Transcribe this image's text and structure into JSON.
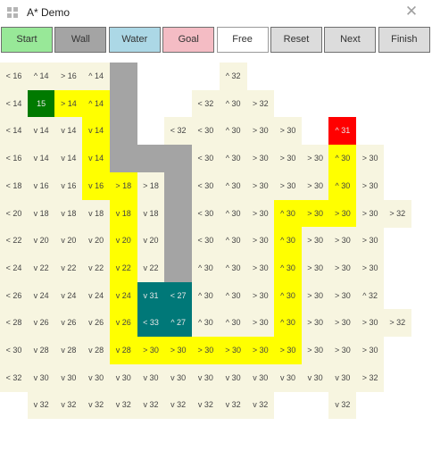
{
  "window": {
    "title": "A* Demo",
    "close_icon": "close-icon"
  },
  "toolbar": {
    "buttons": [
      {
        "label": "Start",
        "color": "#98e898"
      },
      {
        "label": "Wall",
        "color": "#a4a4a4"
      },
      {
        "label": "Water",
        "color": "#acd8e6"
      },
      {
        "label": "Goal",
        "color": "#f4bcc4"
      },
      {
        "label": "Free",
        "color": "#ffffff"
      },
      {
        "label": "Reset",
        "color": "#dcdcdc"
      },
      {
        "label": "Next",
        "color": "#dcdcdc"
      },
      {
        "label": "Finish",
        "color": "#dcdcdc"
      }
    ]
  },
  "legend_colors": {
    "visited": "#f7f5e0",
    "path": "#ffff00",
    "start": "#007a00",
    "goal": "#ff0000",
    "wall": "#a4a4a4",
    "water": "#007878"
  },
  "grid": {
    "rows": [
      [
        "< 16",
        "^ 14",
        "> 16",
        "^ 14",
        "#",
        "",
        "",
        "",
        "^ 32",
        "",
        "",
        "",
        "",
        "",
        "",
        ""
      ],
      [
        "< 14",
        "S:15",
        "P:> 14",
        "P:^ 14",
        "#",
        "",
        "",
        "< 32",
        "^ 30",
        "> 32",
        "",
        "",
        "",
        "",
        "",
        ""
      ],
      [
        "< 14",
        "v 14",
        "v 14",
        "P:v 14",
        "#",
        "",
        "< 32",
        "< 30",
        "^ 30",
        "> 30",
        "> 30",
        "",
        "G:^ 31",
        "",
        "",
        ""
      ],
      [
        "< 16",
        "v 14",
        "v 14",
        "P:v 14",
        "#",
        "#",
        "#",
        "< 30",
        "^ 30",
        "> 30",
        "> 30",
        "> 30",
        "P:^ 30",
        "> 30",
        "",
        ""
      ],
      [
        "< 18",
        "v 16",
        "v 16",
        "P:v 16",
        "P:> 18",
        "> 18",
        "#",
        "< 30",
        "^ 30",
        "> 30",
        "> 30",
        "> 30",
        "P:^ 30",
        "> 30",
        "",
        ""
      ],
      [
        "< 20",
        "v 18",
        "v 18",
        "v 18",
        "P:v 18",
        "v 18",
        "#",
        "< 30",
        "^ 30",
        "> 30",
        "P:^ 30",
        "P:> 30",
        "P:> 30",
        "> 30",
        "> 32",
        ""
      ],
      [
        "< 22",
        "v 20",
        "v 20",
        "v 20",
        "P:v 20",
        "v 20",
        "#",
        "< 30",
        "^ 30",
        "> 30",
        "P:^ 30",
        "> 30",
        "> 30",
        "> 30",
        "",
        ""
      ],
      [
        "< 24",
        "v 22",
        "v 22",
        "v 22",
        "P:v 22",
        "v 22",
        "#",
        "^ 30",
        "^ 30",
        "> 30",
        "P:^ 30",
        "> 30",
        "> 30",
        "> 30",
        "",
        ""
      ],
      [
        "< 26",
        "v 24",
        "v 24",
        "v 24",
        "P:v 24",
        "W:v 31",
        "W:< 27",
        "^ 30",
        "^ 30",
        "> 30",
        "P:^ 30",
        "> 30",
        "> 30",
        "^ 32",
        "",
        ""
      ],
      [
        "< 28",
        "v 26",
        "v 26",
        "v 26",
        "P:v 26",
        "W:< 33",
        "W:^ 27",
        "^ 30",
        "^ 30",
        "> 30",
        "P:^ 30",
        "> 30",
        "> 30",
        "> 30",
        "> 32",
        ""
      ],
      [
        "< 30",
        "v 28",
        "v 28",
        "v 28",
        "P:v 28",
        "P:> 30",
        "P:> 30",
        "P:> 30",
        "P:> 30",
        "P:> 30",
        "P:> 30",
        "> 30",
        "> 30",
        "> 30",
        "",
        ""
      ],
      [
        "< 32",
        "v 30",
        "v 30",
        "v 30",
        "v 30",
        "v 30",
        "v 30",
        "v 30",
        "v 30",
        "v 30",
        "v 30",
        "v 30",
        "v 30",
        "> 32",
        "",
        ""
      ],
      [
        "",
        "v 32",
        "v 32",
        "v 32",
        "v 32",
        "v 32",
        "v 32",
        "v 32",
        "v 32",
        "v 32",
        "",
        "",
        "v 32",
        "",
        "",
        ""
      ]
    ]
  }
}
